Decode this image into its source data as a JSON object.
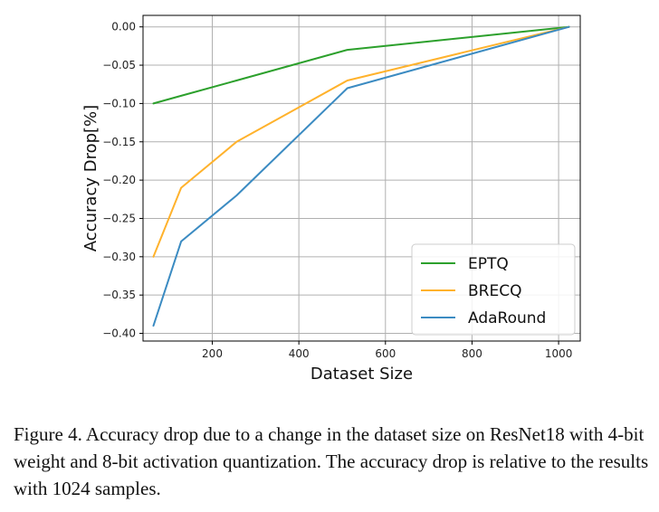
{
  "chart_data": {
    "type": "line",
    "xlabel": "Dataset Size",
    "ylabel": "Accuracy Drop[%]",
    "xlim": [
      40,
      1050
    ],
    "ylim": [
      -0.41,
      0.015
    ],
    "xticks": [
      200,
      400,
      600,
      800,
      1000
    ],
    "yticks": [
      0.0,
      -0.05,
      -0.1,
      -0.15,
      -0.2,
      -0.25,
      -0.3,
      -0.35,
      -0.4
    ],
    "xtick_labels": [
      "200",
      "400",
      "600",
      "800",
      "1000"
    ],
    "ytick_labels": [
      "0.00",
      "−0.05",
      "−0.10",
      "−0.15",
      "−0.20",
      "−0.25",
      "−0.30",
      "−0.35",
      "−0.40"
    ],
    "grid": true,
    "legend_position": "lower-right",
    "x": [
      64,
      128,
      256,
      512,
      1024
    ],
    "series": [
      {
        "name": "EPTQ",
        "color": "#2ca02c",
        "values": [
          -0.1,
          -0.09,
          -0.07,
          -0.03,
          0.0
        ]
      },
      {
        "name": "BRECQ",
        "color": "#ffb22c",
        "values": [
          -0.3,
          -0.21,
          -0.15,
          -0.07,
          0.0
        ]
      },
      {
        "name": "AdaRound",
        "color": "#3b8bc2",
        "values": [
          -0.39,
          -0.28,
          -0.22,
          -0.08,
          0.0
        ]
      }
    ]
  },
  "caption": "Figure 4.  Accuracy drop due to a change in the dataset size on ResNet18 with 4-bit weight and 8-bit activation quantization. The accuracy drop is relative to the results with 1024 samples."
}
